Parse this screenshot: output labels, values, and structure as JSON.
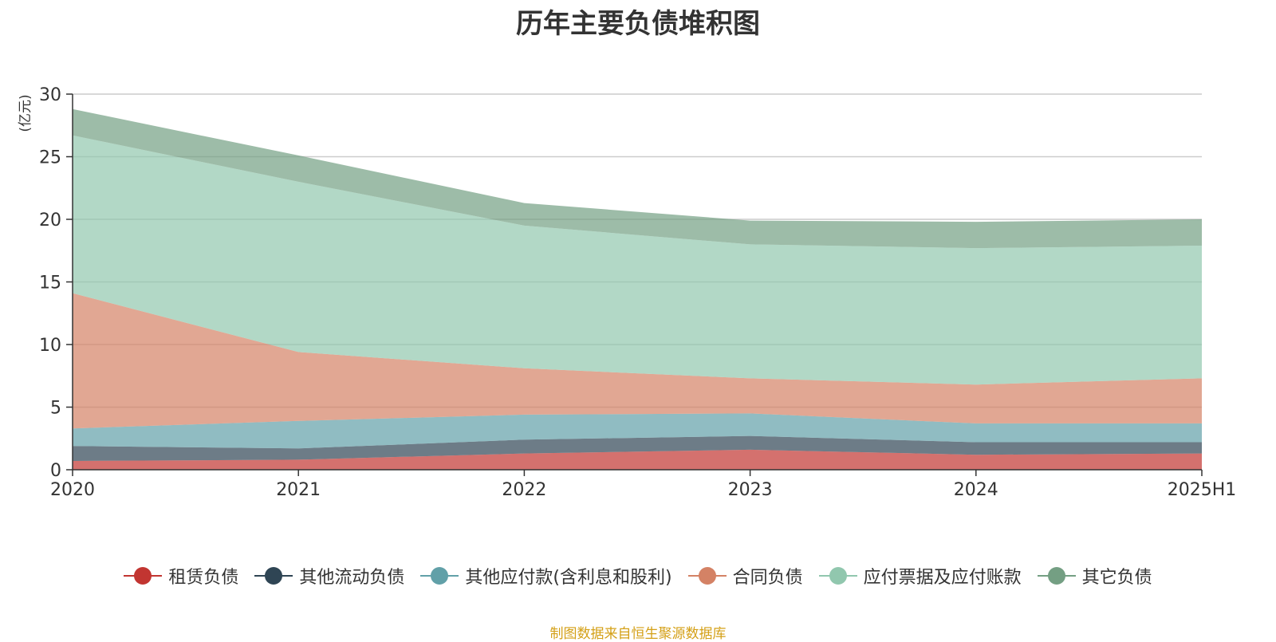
{
  "title": "历年主要负债堆积图",
  "unit_label": "(亿元)",
  "source_note": "制图数据来自恒生聚源数据库",
  "chart_data": {
    "type": "area",
    "stacked": true,
    "title": "历年主要负债堆积图",
    "ylabel": "(亿元)",
    "x": [
      "2020",
      "2021",
      "2022",
      "2023",
      "2024",
      "2025H1"
    ],
    "ylim": [
      0,
      30
    ],
    "yticks": [
      0,
      5,
      10,
      15,
      20,
      25,
      30
    ],
    "grid": true,
    "legend_position": "bottom",
    "series": [
      {
        "name": "租赁负债",
        "color": "#c23531",
        "values": [
          0.7,
          0.8,
          1.3,
          1.6,
          1.2,
          1.3
        ]
      },
      {
        "name": "其他流动负债",
        "color": "#2f4554",
        "values": [
          1.2,
          0.9,
          1.1,
          1.1,
          1.0,
          0.9
        ]
      },
      {
        "name": "其他应付款(含利息和股利)",
        "color": "#61a0a8",
        "values": [
          1.4,
          2.2,
          2.0,
          1.8,
          1.5,
          1.5
        ]
      },
      {
        "name": "合同负债",
        "color": "#d48265",
        "values": [
          10.8,
          5.5,
          3.7,
          2.8,
          3.1,
          3.6
        ]
      },
      {
        "name": "应付票据及应付账款",
        "color": "#91c7ae",
        "values": [
          12.6,
          13.6,
          11.4,
          10.7,
          10.9,
          10.6
        ]
      },
      {
        "name": "其它负债",
        "color": "#749f83",
        "values": [
          2.1,
          2.1,
          1.8,
          1.9,
          2.1,
          2.1
        ]
      }
    ]
  }
}
